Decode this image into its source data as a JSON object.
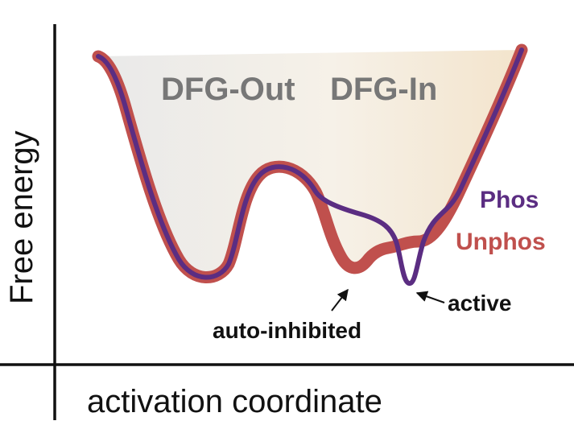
{
  "axes": {
    "y_label": "Free energy",
    "x_label": "activation coordinate"
  },
  "regions": {
    "left_label": "DFG-Out",
    "right_label": "DFG-In"
  },
  "legend": {
    "phos_label": "Phos",
    "unphos_label": "Unphos"
  },
  "annotations": {
    "auto_inhibited": "auto-inhibited",
    "active": "active"
  },
  "colors": {
    "phos": "#5b2d82",
    "unphos": "#c0504d",
    "region_text": "#777777",
    "region_left_fill": "#eeeeee",
    "region_right_fill": "#f5ead8",
    "axis": "#111111"
  }
}
